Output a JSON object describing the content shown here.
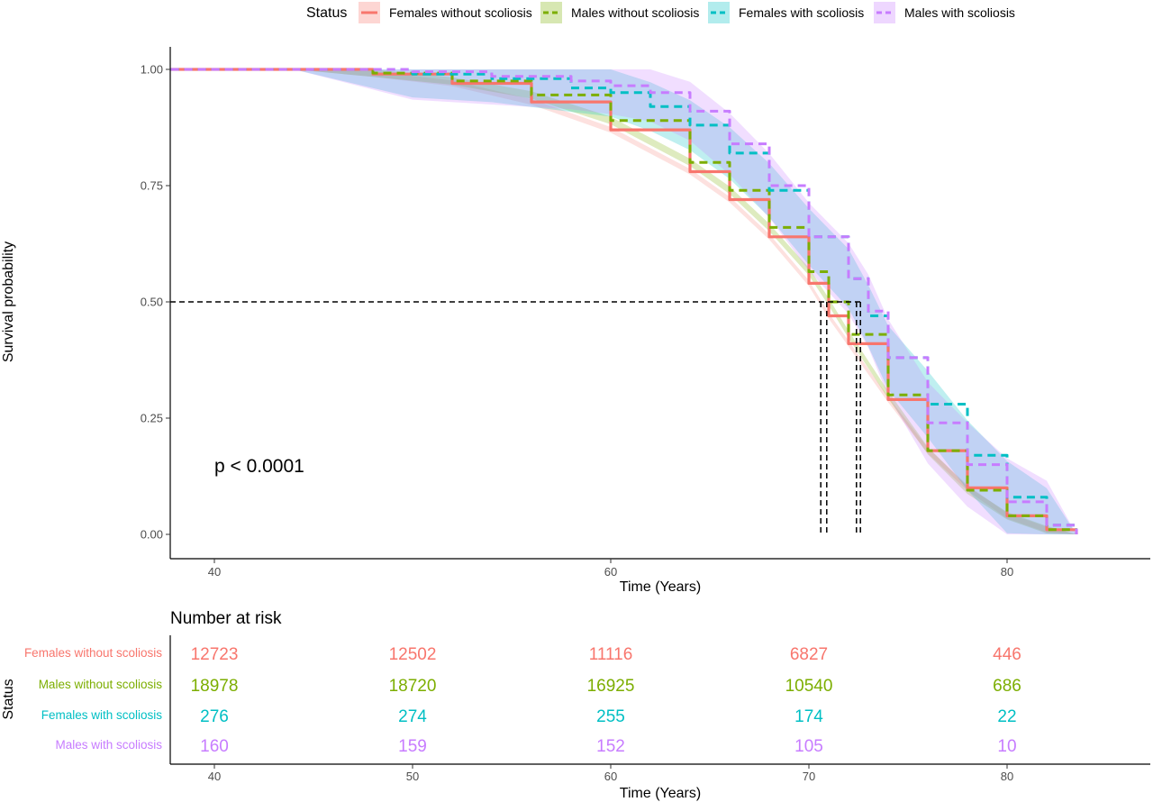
{
  "chart_data": [
    {
      "type": "line",
      "subtype": "kaplan-meier",
      "title": "",
      "xlabel": "Time (Years)",
      "ylabel": "Survival probability",
      "xlim": [
        37.8,
        87.5
      ],
      "ylim": [
        0,
        1
      ],
      "x_ticks": [
        "40",
        "60",
        "80"
      ],
      "y_ticks": [
        "0.00",
        "0.25",
        "0.50",
        "0.75",
        "1.00"
      ],
      "grid": false,
      "legend": {
        "title": "Status",
        "position": "top",
        "entries": [
          "Females without scoliosis",
          "Males without scoliosis",
          "Females with scoliosis",
          "Males with scoliosis"
        ]
      },
      "annotation": "p < 0.0001",
      "median_survival_reference": {
        "y": 0.5,
        "x": [
          70.6,
          70.9,
          72.4,
          72.6
        ]
      },
      "series": [
        {
          "name": "Females without scoliosis",
          "color": "#F8766D",
          "line_style": "solid",
          "confidence_band": true,
          "points": [
            [
              37.8,
              1.0
            ],
            [
              44,
              1.0
            ],
            [
              48,
              0.99
            ],
            [
              52,
              0.97
            ],
            [
              56,
              0.93
            ],
            [
              60,
              0.87
            ],
            [
              64,
              0.78
            ],
            [
              66,
              0.72
            ],
            [
              68,
              0.64
            ],
            [
              70,
              0.54
            ],
            [
              71,
              0.47
            ],
            [
              72,
              0.41
            ],
            [
              74,
              0.29
            ],
            [
              76,
              0.18
            ],
            [
              78,
              0.1
            ],
            [
              80,
              0.04
            ],
            [
              82,
              0.01
            ],
            [
              83.5,
              0.0
            ]
          ]
        },
        {
          "name": "Males without scoliosis",
          "color": "#7CAE00",
          "line_style": "dashed",
          "confidence_band": true,
          "points": [
            [
              37.8,
              1.0
            ],
            [
              44,
              1.0
            ],
            [
              48,
              0.992
            ],
            [
              52,
              0.975
            ],
            [
              56,
              0.945
            ],
            [
              60,
              0.89
            ],
            [
              64,
              0.8
            ],
            [
              66,
              0.74
            ],
            [
              68,
              0.66
            ],
            [
              70,
              0.565
            ],
            [
              71,
              0.5
            ],
            [
              72,
              0.43
            ],
            [
              74,
              0.3
            ],
            [
              76,
              0.18
            ],
            [
              78,
              0.095
            ],
            [
              80,
              0.04
            ],
            [
              82,
              0.01
            ],
            [
              83.5,
              0.0
            ]
          ]
        },
        {
          "name": "Females with scoliosis",
          "color": "#00BFC4",
          "line_style": "dashed",
          "confidence_band": true,
          "points": [
            [
              37.8,
              1.0
            ],
            [
              44,
              1.0
            ],
            [
              50,
              0.99
            ],
            [
              54,
              0.98
            ],
            [
              58,
              0.96
            ],
            [
              60,
              0.95
            ],
            [
              62,
              0.92
            ],
            [
              64,
              0.88
            ],
            [
              66,
              0.82
            ],
            [
              68,
              0.74
            ],
            [
              70,
              0.64
            ],
            [
              72,
              0.55
            ],
            [
              73,
              0.47
            ],
            [
              74,
              0.38
            ],
            [
              76,
              0.28
            ],
            [
              78,
              0.17
            ],
            [
              80,
              0.08
            ],
            [
              82,
              0.02
            ],
            [
              83.5,
              0.0
            ]
          ]
        },
        {
          "name": "Males with scoliosis",
          "color": "#C77CFF",
          "line_style": "dashed",
          "confidence_band": true,
          "points": [
            [
              37.8,
              1.0
            ],
            [
              44,
              1.0
            ],
            [
              50,
              0.995
            ],
            [
              54,
              0.985
            ],
            [
              58,
              0.975
            ],
            [
              60,
              0.965
            ],
            [
              62,
              0.95
            ],
            [
              64,
              0.91
            ],
            [
              66,
              0.84
            ],
            [
              68,
              0.75
            ],
            [
              70,
              0.64
            ],
            [
              72,
              0.55
            ],
            [
              73,
              0.48
            ],
            [
              74,
              0.38
            ],
            [
              76,
              0.24
            ],
            [
              78,
              0.15
            ],
            [
              80,
              0.07
            ],
            [
              82,
              0.02
            ],
            [
              83.5,
              0.0
            ]
          ]
        }
      ]
    },
    {
      "type": "table",
      "title": "Number at risk",
      "xlabel": "Time (Years)",
      "ylabel": "Status",
      "columns": [
        "40",
        "50",
        "60",
        "70",
        "80"
      ],
      "rows": [
        {
          "label": "Females without scoliosis",
          "color": "#F8766D",
          "values": [
            "12723",
            "12502",
            "11116",
            "6827",
            "446"
          ]
        },
        {
          "label": "Males without scoliosis",
          "color": "#7CAE00",
          "values": [
            "18978",
            "18720",
            "16925",
            "10540",
            "686"
          ]
        },
        {
          "label": "Females with scoliosis",
          "color": "#00BFC4",
          "values": [
            "276",
            "274",
            "255",
            "174",
            "22"
          ]
        },
        {
          "label": "Males with scoliosis",
          "color": "#C77CFF",
          "values": [
            "160",
            "159",
            "152",
            "105",
            "10"
          ]
        }
      ]
    }
  ]
}
